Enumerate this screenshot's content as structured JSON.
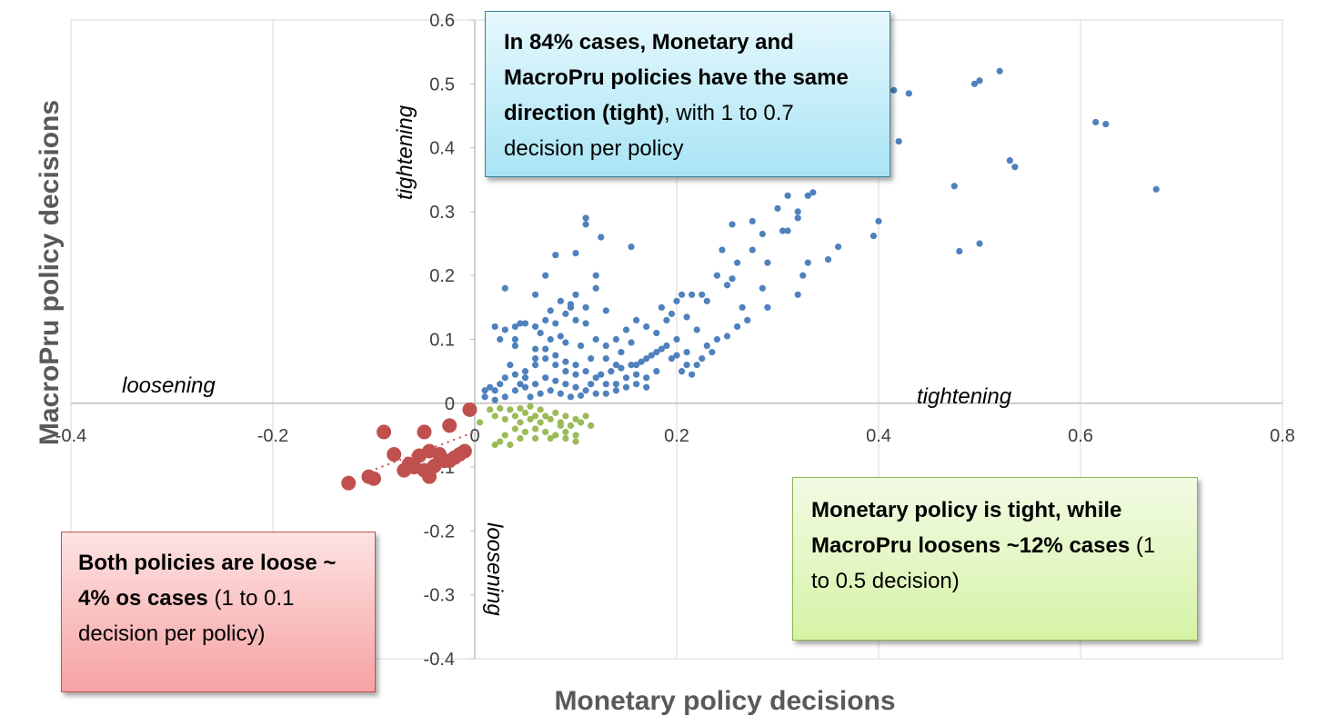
{
  "chart_data": {
    "type": "scatter",
    "xlabel": "Monetary policy decisions",
    "ylabel": "MacroPru policy decisions",
    "xlim": [
      -0.4,
      0.8
    ],
    "ylim": [
      -0.4,
      0.6
    ],
    "x_ticks": [
      "-0.4",
      "-0.2",
      "0",
      "0.2",
      "0.4",
      "0.6",
      "0.8"
    ],
    "y_ticks": [
      "0.6",
      "0.5",
      "0.4",
      "0.3",
      "0.2",
      "0.1",
      "0",
      "-0.1",
      "-0.2",
      "-0.3",
      "-0.4"
    ],
    "grid": "vertical",
    "colors": {
      "blue": "#4f81bd",
      "green": "#9bbb59",
      "red": "#c0504d"
    },
    "series": [
      {
        "color": "#4f81bd",
        "points": [
          [
            0.52,
            0.52
          ],
          [
            0.5,
            0.505
          ],
          [
            0.495,
            0.5
          ],
          [
            0.43,
            0.485
          ],
          [
            0.415,
            0.49
          ],
          [
            0.38,
            0.45
          ],
          [
            0.42,
            0.41
          ],
          [
            0.615,
            0.44
          ],
          [
            0.625,
            0.437
          ],
          [
            0.53,
            0.38
          ],
          [
            0.535,
            0.37
          ],
          [
            0.475,
            0.34
          ],
          [
            0.675,
            0.335
          ],
          [
            0.4,
            0.285
          ],
          [
            0.395,
            0.262
          ],
          [
            0.48,
            0.238
          ],
          [
            0.5,
            0.25
          ],
          [
            0.36,
            0.245
          ],
          [
            0.35,
            0.225
          ],
          [
            0.335,
            0.33
          ],
          [
            0.33,
            0.325
          ],
          [
            0.31,
            0.325
          ],
          [
            0.32,
            0.29
          ],
          [
            0.32,
            0.3
          ],
          [
            0.305,
            0.27
          ],
          [
            0.3,
            0.305
          ],
          [
            0.275,
            0.285
          ],
          [
            0.285,
            0.265
          ],
          [
            0.255,
            0.28
          ],
          [
            0.275,
            0.24
          ],
          [
            0.26,
            0.22
          ],
          [
            0.245,
            0.24
          ],
          [
            0.24,
            0.2
          ],
          [
            0.25,
            0.185
          ],
          [
            0.255,
            0.195
          ],
          [
            0.23,
            0.16
          ],
          [
            0.225,
            0.17
          ],
          [
            0.215,
            0.17
          ],
          [
            0.205,
            0.17
          ],
          [
            0.2,
            0.16
          ],
          [
            0.195,
            0.14
          ],
          [
            0.19,
            0.13
          ],
          [
            0.185,
            0.15
          ],
          [
            0.21,
            0.135
          ],
          [
            0.22,
            0.115
          ],
          [
            0.24,
            0.1
          ],
          [
            0.26,
            0.12
          ],
          [
            0.265,
            0.15
          ],
          [
            0.285,
            0.18
          ],
          [
            0.29,
            0.22
          ],
          [
            0.31,
            0.27
          ],
          [
            0.33,
            0.22
          ],
          [
            0.325,
            0.2
          ],
          [
            0.32,
            0.17
          ],
          [
            0.29,
            0.15
          ],
          [
            0.27,
            0.13
          ],
          [
            0.25,
            0.105
          ],
          [
            0.23,
            0.09
          ],
          [
            0.21,
            0.08
          ],
          [
            0.2,
            0.1
          ],
          [
            0.18,
            0.11
          ],
          [
            0.17,
            0.12
          ],
          [
            0.16,
            0.13
          ],
          [
            0.15,
            0.115
          ],
          [
            0.14,
            0.1
          ],
          [
            0.155,
            0.095
          ],
          [
            0.145,
            0.08
          ],
          [
            0.13,
            0.09
          ],
          [
            0.12,
            0.1
          ],
          [
            0.11,
            0.125
          ],
          [
            0.1,
            0.13
          ],
          [
            0.09,
            0.14
          ],
          [
            0.095,
            0.155
          ],
          [
            0.1,
            0.17
          ],
          [
            0.085,
            0.16
          ],
          [
            0.075,
            0.145
          ],
          [
            0.08,
            0.125
          ],
          [
            0.07,
            0.13
          ],
          [
            0.06,
            0.12
          ],
          [
            0.05,
            0.125
          ],
          [
            0.04,
            0.12
          ],
          [
            0.03,
            0.115
          ],
          [
            0.02,
            0.12
          ],
          [
            0.025,
            0.1
          ],
          [
            0.04,
            0.09
          ],
          [
            0.06,
            0.085
          ],
          [
            0.075,
            0.1
          ],
          [
            0.09,
            0.095
          ],
          [
            0.105,
            0.09
          ],
          [
            0.115,
            0.07
          ],
          [
            0.13,
            0.07
          ],
          [
            0.14,
            0.06
          ],
          [
            0.16,
            0.06
          ],
          [
            0.17,
            0.07
          ],
          [
            0.18,
            0.08
          ],
          [
            0.19,
            0.09
          ],
          [
            0.2,
            0.075
          ],
          [
            0.21,
            0.06
          ],
          [
            0.22,
            0.06
          ],
          [
            0.18,
            0.05
          ],
          [
            0.17,
            0.04
          ],
          [
            0.16,
            0.045
          ],
          [
            0.15,
            0.04
          ],
          [
            0.14,
            0.03
          ],
          [
            0.13,
            0.03
          ],
          [
            0.12,
            0.04
          ],
          [
            0.11,
            0.05
          ],
          [
            0.1,
            0.06
          ],
          [
            0.09,
            0.05
          ],
          [
            0.08,
            0.06
          ],
          [
            0.07,
            0.07
          ],
          [
            0.06,
            0.06
          ],
          [
            0.05,
            0.05
          ],
          [
            0.04,
            0.045
          ],
          [
            0.035,
            0.06
          ],
          [
            0.03,
            0.04
          ],
          [
            0.025,
            0.03
          ],
          [
            0.02,
            0.02
          ],
          [
            0.015,
            0.025
          ],
          [
            0.01,
            0.02
          ],
          [
            0.01,
            0.01
          ],
          [
            0.02,
            0.005
          ],
          [
            0.03,
            0.01
          ],
          [
            0.04,
            0.02
          ],
          [
            0.05,
            0.025
          ],
          [
            0.06,
            0.03
          ],
          [
            0.07,
            0.04
          ],
          [
            0.08,
            0.035
          ],
          [
            0.09,
            0.03
          ],
          [
            0.1,
            0.025
          ],
          [
            0.11,
            0.02
          ],
          [
            0.12,
            0.015
          ],
          [
            0.13,
            0.015
          ],
          [
            0.14,
            0.02
          ],
          [
            0.15,
            0.025
          ],
          [
            0.16,
            0.03
          ],
          [
            0.17,
            0.025
          ],
          [
            0.055,
            0.01
          ],
          [
            0.065,
            0.015
          ],
          [
            0.075,
            0.02
          ],
          [
            0.085,
            0.015
          ],
          [
            0.095,
            0.01
          ],
          [
            0.105,
            0.012
          ],
          [
            0.115,
            0.03
          ],
          [
            0.125,
            0.045
          ],
          [
            0.135,
            0.05
          ],
          [
            0.145,
            0.055
          ],
          [
            0.155,
            0.06
          ],
          [
            0.165,
            0.065
          ],
          [
            0.175,
            0.075
          ],
          [
            0.185,
            0.085
          ],
          [
            0.195,
            0.07
          ],
          [
            0.205,
            0.05
          ],
          [
            0.215,
            0.045
          ],
          [
            0.225,
            0.07
          ],
          [
            0.235,
            0.08
          ],
          [
            0.1,
            0.045
          ],
          [
            0.09,
            0.065
          ],
          [
            0.08,
            0.075
          ],
          [
            0.07,
            0.085
          ],
          [
            0.06,
            0.07
          ],
          [
            0.05,
            0.04
          ],
          [
            0.045,
            0.03
          ],
          [
            0.11,
            0.29
          ],
          [
            0.11,
            0.28
          ],
          [
            0.125,
            0.26
          ],
          [
            0.1,
            0.235
          ],
          [
            0.08,
            0.232
          ],
          [
            0.07,
            0.2
          ],
          [
            0.12,
            0.2
          ],
          [
            0.155,
            0.245
          ],
          [
            0.12,
            0.18
          ],
          [
            0.03,
            0.18
          ],
          [
            0.06,
            0.17
          ],
          [
            0.095,
            0.15
          ],
          [
            0.11,
            0.15
          ],
          [
            0.13,
            0.145
          ],
          [
            0.04,
            0.1
          ],
          [
            0.045,
            0.125
          ],
          [
            0.065,
            0.11
          ],
          [
            0.085,
            0.105
          ]
        ]
      },
      {
        "color": "#9bbb59",
        "points": [
          [
            0.02,
            -0.02
          ],
          [
            0.03,
            -0.025
          ],
          [
            0.04,
            -0.02
          ],
          [
            0.045,
            -0.03
          ],
          [
            0.05,
            -0.015
          ],
          [
            0.055,
            -0.025
          ],
          [
            0.06,
            -0.02
          ],
          [
            0.065,
            -0.03
          ],
          [
            0.07,
            -0.02
          ],
          [
            0.075,
            -0.025
          ],
          [
            0.08,
            -0.015
          ],
          [
            0.085,
            -0.03
          ],
          [
            0.09,
            -0.02
          ],
          [
            0.095,
            -0.035
          ],
          [
            0.1,
            -0.025
          ],
          [
            0.105,
            -0.03
          ],
          [
            0.11,
            -0.02
          ],
          [
            0.115,
            -0.035
          ],
          [
            0.1,
            -0.05
          ],
          [
            0.09,
            -0.045
          ],
          [
            0.08,
            -0.05
          ],
          [
            0.07,
            -0.045
          ],
          [
            0.06,
            -0.04
          ],
          [
            0.05,
            -0.045
          ],
          [
            0.04,
            -0.04
          ],
          [
            0.03,
            -0.05
          ],
          [
            0.025,
            -0.06
          ],
          [
            0.02,
            -0.065
          ],
          [
            0.035,
            -0.065
          ],
          [
            0.045,
            -0.055
          ],
          [
            0.06,
            -0.055
          ],
          [
            0.075,
            -0.055
          ],
          [
            0.09,
            -0.055
          ],
          [
            0.1,
            -0.06
          ],
          [
            0.085,
            -0.035
          ],
          [
            0.065,
            -0.01
          ],
          [
            0.055,
            -0.005
          ],
          [
            0.045,
            -0.008
          ],
          [
            0.035,
            -0.01
          ],
          [
            0.025,
            -0.008
          ],
          [
            0.015,
            -0.01
          ],
          [
            0.005,
            -0.03
          ]
        ]
      },
      {
        "color": "#c0504d",
        "points": [
          [
            -0.125,
            -0.125
          ],
          [
            -0.105,
            -0.115
          ],
          [
            -0.1,
            -0.118
          ],
          [
            -0.07,
            -0.105
          ],
          [
            -0.08,
            -0.08
          ],
          [
            -0.09,
            -0.045
          ],
          [
            -0.065,
            -0.095
          ],
          [
            -0.05,
            -0.105
          ],
          [
            -0.045,
            -0.115
          ],
          [
            -0.04,
            -0.098
          ],
          [
            -0.055,
            -0.082
          ],
          [
            -0.045,
            -0.075
          ],
          [
            -0.05,
            -0.045
          ],
          [
            -0.025,
            -0.035
          ],
          [
            -0.035,
            -0.08
          ],
          [
            -0.03,
            -0.09
          ],
          [
            -0.015,
            -0.08
          ],
          [
            -0.02,
            -0.085
          ],
          [
            -0.01,
            -0.075
          ],
          [
            -0.005,
            -0.01
          ],
          [
            -0.025,
            -0.09
          ],
          [
            -0.06,
            -0.1
          ]
        ]
      }
    ],
    "annotations": [
      "loosening",
      "tightening",
      "tightening",
      "loosening"
    ]
  },
  "boxes": {
    "blue": {
      "bold": "In 84% cases, Monetary and MacroPru policies have the same direction (tight)",
      "normal": ", with 1 to 0.7 decision per policy"
    },
    "green": {
      "bold": "Monetary policy is tight, while MacroPru loosens ~12% cases",
      "normal": " (1 to 0.5 decision)"
    },
    "red": {
      "bold": "Both policies are loose ~ 4% os cases",
      "normal": " (1 to 0.1 decision per policy)"
    }
  }
}
